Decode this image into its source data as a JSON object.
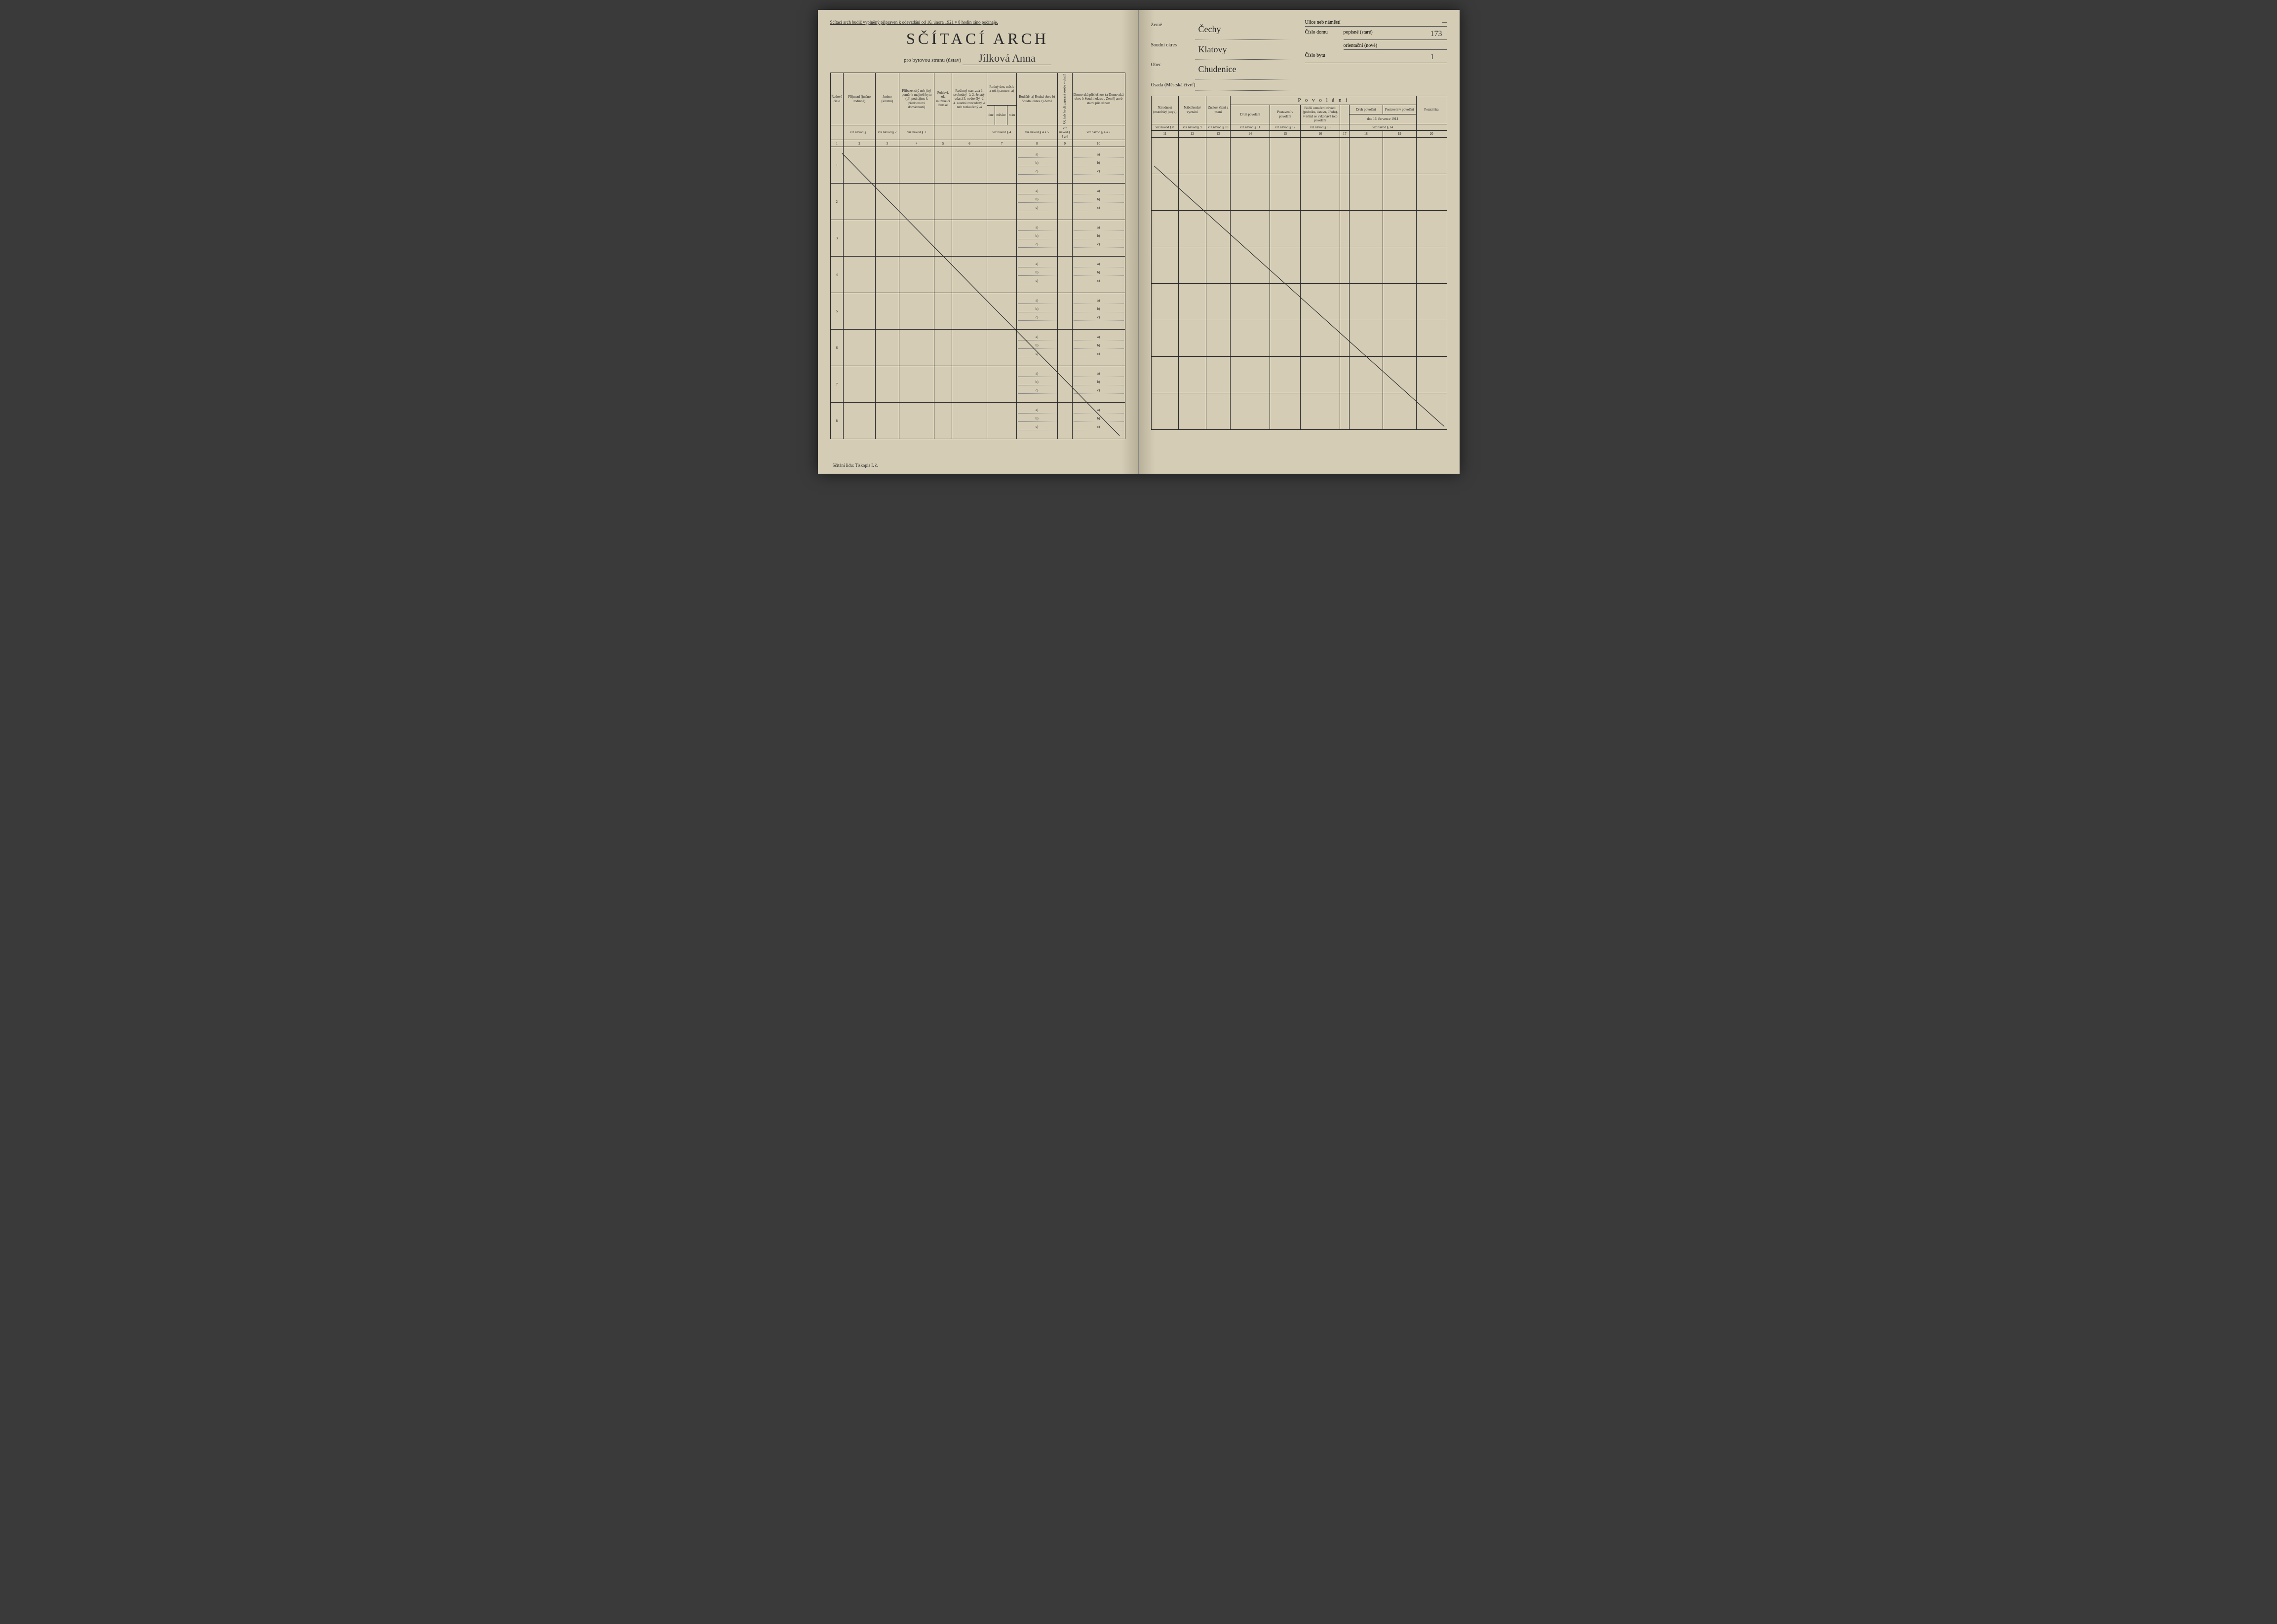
{
  "document": {
    "background_color": "#d4ccb5",
    "ink_color": "#2a2a2a",
    "handwriting_color": "#3a3a3a",
    "border_color": "#2a2a2a"
  },
  "left": {
    "top_notice": "Sčítací arch budiž vyplněný připraven k odevzdání od 16. února 1921 v 8 hodin ráno počínaje.",
    "title": "SČÍTACÍ ARCH",
    "subtitle_prefix": "pro bytovou stranu (ústav)",
    "subtitle_handwritten": "Jílková Anna",
    "footer": "Sčítání lidu: Tiskopis I. č.",
    "columns": {
      "c1": "Řadové číslo",
      "c2": "Příjmení (jméno rodinné)",
      "c3": "Jméno (křestní)",
      "c4": "Příbuzenský neb jiný poměr k majiteli bytu (při podnájmu k přednostovi domácnosti)",
      "c5": "Pohlaví, zda mužské či ženské",
      "c6": "Rodinný stav, zda 1. svobodný -á, 2. ženatý, vdaná 3. ovdovělý -á, 4. soudně rozvedený -á neb rozloučený -á",
      "c7": "Rodný den, měsíc a rok (narozen -a)",
      "c7a": "dne",
      "c7b": "měsíce",
      "c7c": "roku",
      "c8": "Rodiště: a) Rodná obec b) Soudní okres c) Země",
      "c9": "Od kdy bydlí zapsaná osoba v obci?",
      "c10": "Domovská příslušnost (a Domovská obec b Soudní okres c Země) aneb státní příslušnost"
    },
    "nav_hints": {
      "h2": "viz návod § 1",
      "h3": "viz návod § 2",
      "h4": "viz návod § 3",
      "h7": "viz návod § 4",
      "h8": "viz návod § 4 a 5",
      "h9": "viz návod § 4 a 6",
      "h10": "viz návod § 4 a 7"
    },
    "colnums": [
      "1",
      "2",
      "3",
      "4",
      "5",
      "6",
      "7",
      "8",
      "9",
      "10"
    ],
    "rownums": [
      "1",
      "2",
      "3",
      "4",
      "5",
      "6",
      "7",
      "8"
    ],
    "sub_labels": {
      "a": "a)",
      "b": "b)",
      "c": "c)"
    }
  },
  "right": {
    "fields": {
      "zeme_lbl": "Země",
      "zeme_val": "Čechy",
      "okres_lbl": "Soudní okres",
      "okres_val": "Klatovy",
      "obec_lbl": "Obec",
      "obec_val": "Chudenice",
      "osada_lbl": "Osada (Městská čtvrť)",
      "osada_val": "",
      "ulice_lbl": "Ulice neb náměstí",
      "ulice_val": "—",
      "cislo_domu_lbl": "Číslo domu",
      "popisne_lbl": "popisné (staré)",
      "popisne_val": "173",
      "orient_lbl": "orientační (nové)",
      "orient_val": "",
      "byt_lbl": "Číslo bytu",
      "byt_val": "1"
    },
    "povolani": "P o v o l á n í",
    "columns": {
      "c11": "Národnost (mateřský jazyk)",
      "c12": "Náboženské vyznání",
      "c13": "Znalost čtení a psaní",
      "c14": "Druh povolání",
      "c15": "Postavení v povolání",
      "c16": "Bližší označení závodu (podniku, ústavu, úřadu), v němž se vykonává toto povolání",
      "c17": "",
      "c18": "Druh povolání",
      "c19": "Postavení v povolání",
      "c18_19_sub": "dne 16. července 1914",
      "c20": "Poznámka"
    },
    "nav_hints": {
      "h11": "viz návod § 8",
      "h12": "viz návod § 9",
      "h13": "viz návod § 10",
      "h14": "viz návod § 11",
      "h15": "viz návod § 12",
      "h16": "viz návod § 13",
      "h18": "viz návod § 14"
    },
    "colnums": [
      "11",
      "12",
      "13",
      "14",
      "15",
      "16",
      "17",
      "18",
      "19",
      "20"
    ]
  }
}
